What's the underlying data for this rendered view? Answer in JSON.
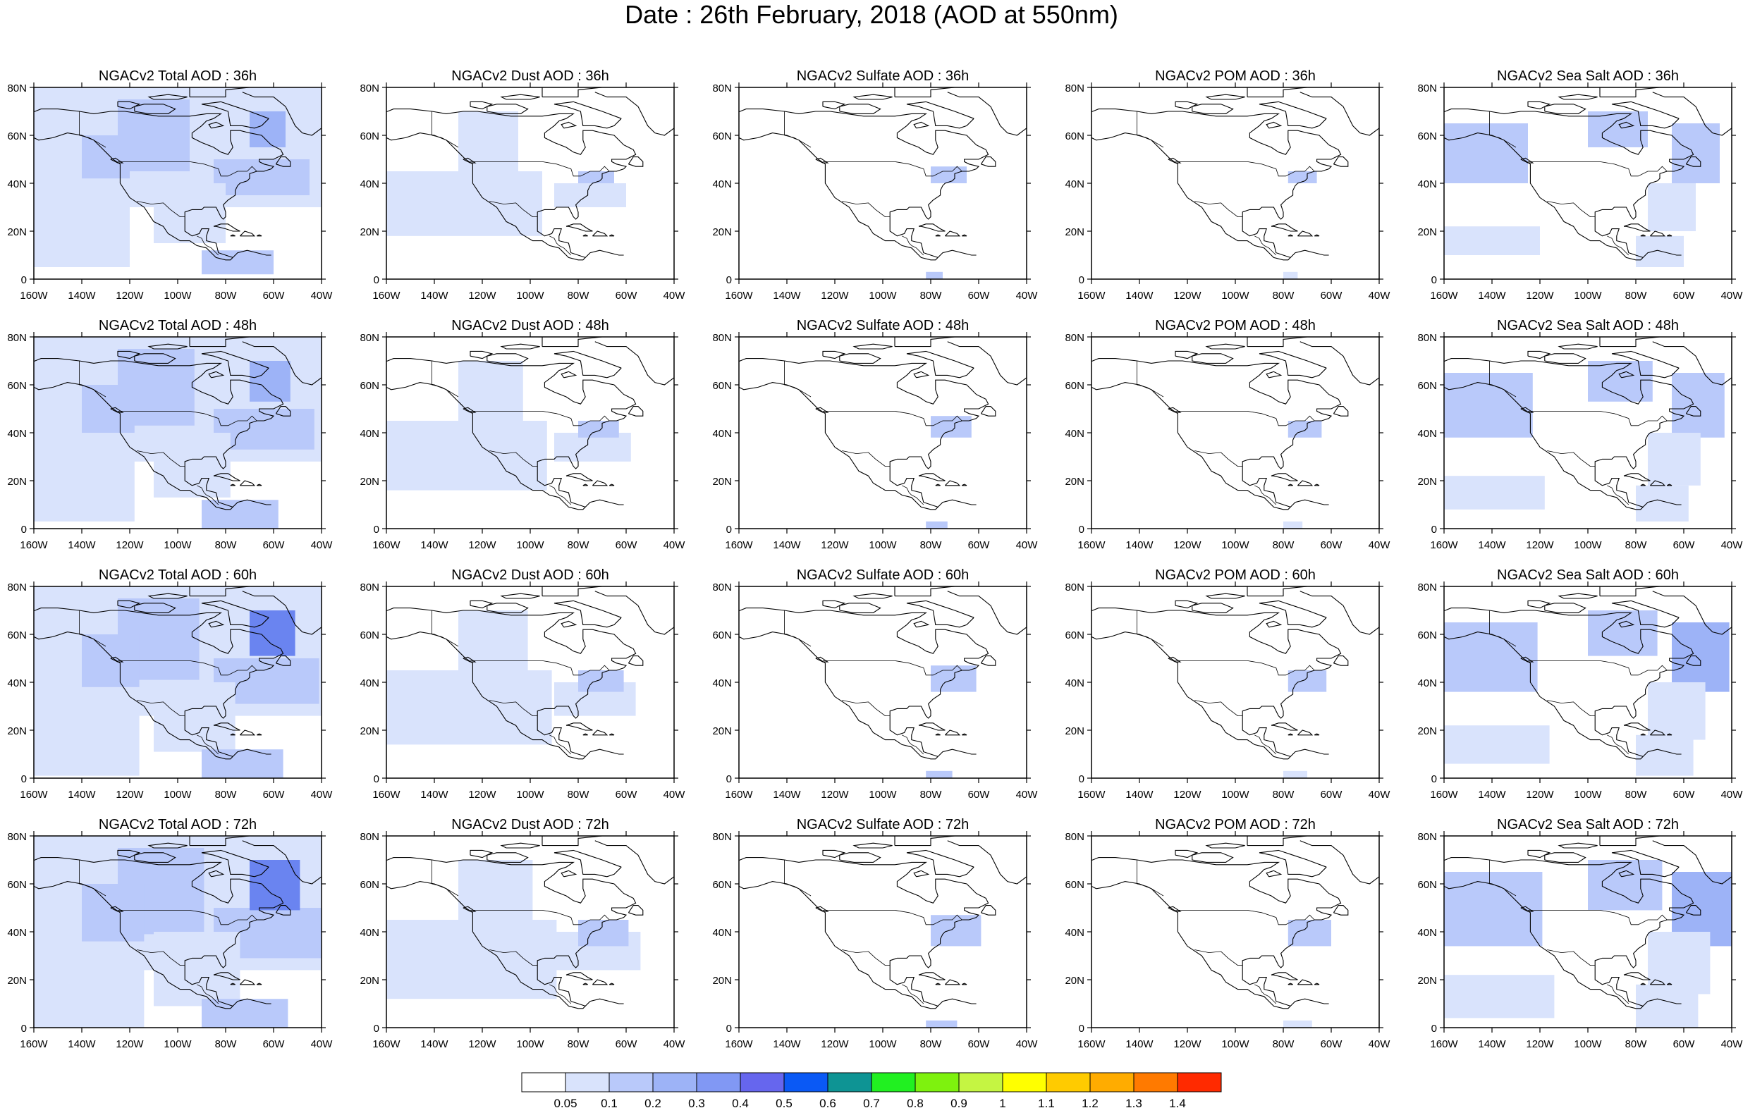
{
  "title": "Date : 26th February, 2018 (AOD at 550nm)",
  "panel_titles": [
    [
      "NGACv2 Total AOD : 36h",
      "NGACv2 Dust AOD : 36h",
      "NGACv2 Sulfate AOD : 36h",
      "NGACv2 POM AOD : 36h",
      "NGACv2 Sea Salt AOD : 36h"
    ],
    [
      "NGACv2 Total AOD : 48h",
      "NGACv2 Dust AOD : 48h",
      "NGACv2 Sulfate AOD : 48h",
      "NGACv2 POM AOD : 48h",
      "NGACv2 Sea Salt AOD : 48h"
    ],
    [
      "NGACv2 Total AOD : 60h",
      "NGACv2 Dust AOD : 60h",
      "NGACv2 Sulfate AOD : 60h",
      "NGACv2 POM AOD : 60h",
      "NGACv2 Sea Salt AOD : 60h"
    ],
    [
      "NGACv2 Total AOD : 72h",
      "NGACv2 Dust AOD : 72h",
      "NGACv2 Sulfate AOD : 72h",
      "NGACv2 POM AOD : 72h",
      "NGACv2 Sea Salt  AOD : 72h"
    ]
  ],
  "lat_labels": [
    "80N",
    "60N",
    "40N",
    "20N",
    "0"
  ],
  "lon_labels": [
    "160W",
    "140W",
    "120W",
    "100W",
    "80W",
    "60W",
    "40W"
  ],
  "colorbar": {
    "labels": [
      "0.05",
      "0.1",
      "0.2",
      "0.3",
      "0.4",
      "0.5",
      "0.6",
      "0.7",
      "0.8",
      "0.9",
      "1",
      "1.1",
      "1.2",
      "1.3",
      "1.4"
    ],
    "colors": [
      "#ffffff",
      "#d9e3fc",
      "#b9c9fa",
      "#9db3f7",
      "#8198f4",
      "#6666ee",
      "#0a59f5",
      "#0e9494",
      "#21f021",
      "#7ef20e",
      "#c5f542",
      "#ffff00",
      "#ffcb00",
      "#ffac00",
      "#ff7a00",
      "#ff2a00"
    ]
  },
  "map_colors": {
    "coast": "#000000",
    "aod_low": "#d9e3fc",
    "aod_mid": "#b9c9fa",
    "aod_high": "#9db3f7",
    "aod_peak": "#6a84f0"
  }
}
